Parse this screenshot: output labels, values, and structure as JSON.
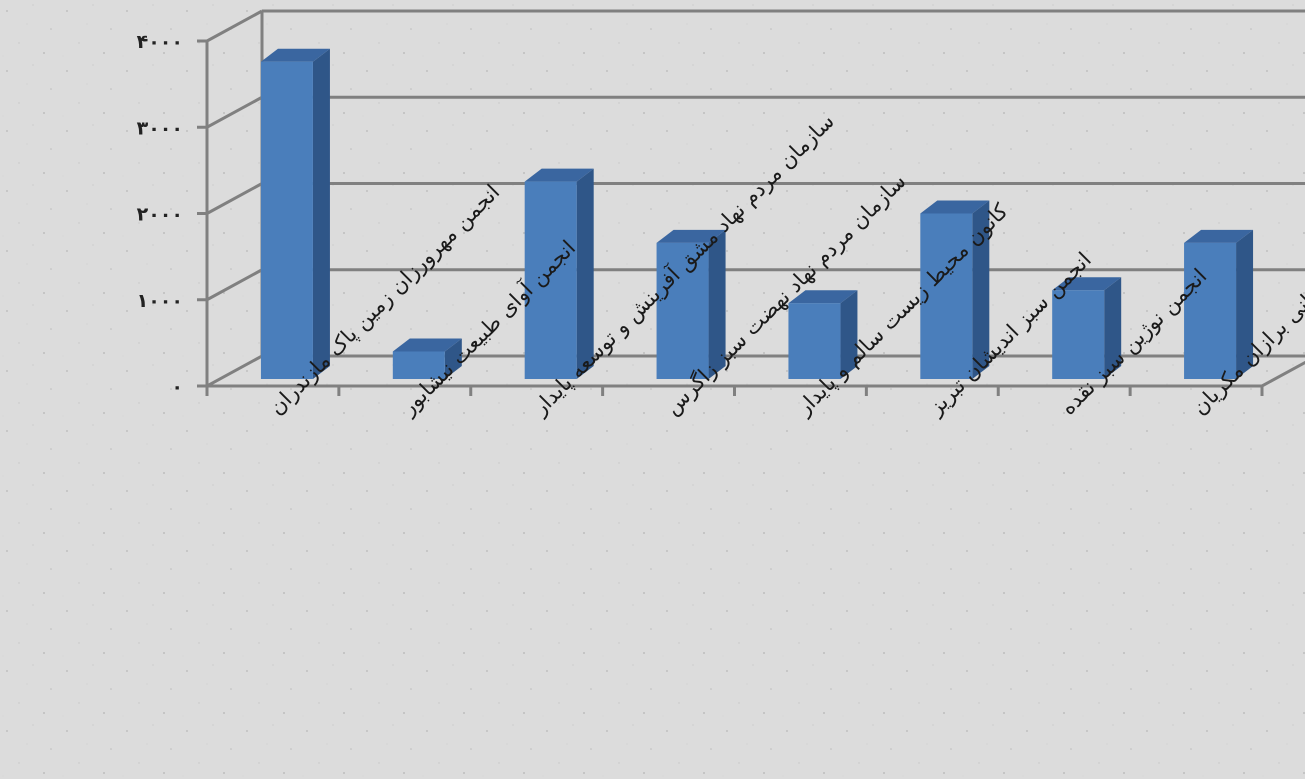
{
  "chart_data": {
    "type": "bar",
    "style": "3d-column",
    "categories": [
      "انجمن مهرورزان زمین پاک مازندران",
      "انجمن آوای طبیعت نیشابور",
      "سازمان مردم نهاد مشق آفرینش و توسعه پایدار",
      "سازمان مردم نهاد نهضت سبز زاگرس",
      "کانون محیط زیست سالم و پایدار",
      "انجمن سبز اندیشان تبریز",
      "انجمن نوژین سبز نقده",
      "کانون سبزگردشگری کانی برازان مکریان"
    ],
    "values": [
      3760,
      400,
      2370,
      1660,
      960,
      2000,
      1110,
      1660
    ],
    "ylim": [
      0,
      4000
    ],
    "yticks": [
      0,
      1000,
      2000,
      3000,
      4000
    ],
    "ytick_labels": [
      "۰",
      "۱۰۰۰",
      "۲۰۰۰",
      "۳۰۰۰",
      "۴۰۰۰"
    ],
    "title": "",
    "xlabel": "",
    "ylabel": "",
    "grid": true,
    "legend": "none",
    "colors": {
      "bar_front": "#4a7ebb",
      "bar_side": "#2f5688",
      "bar_top": "#3a66a0",
      "grid": "#808080"
    }
  }
}
